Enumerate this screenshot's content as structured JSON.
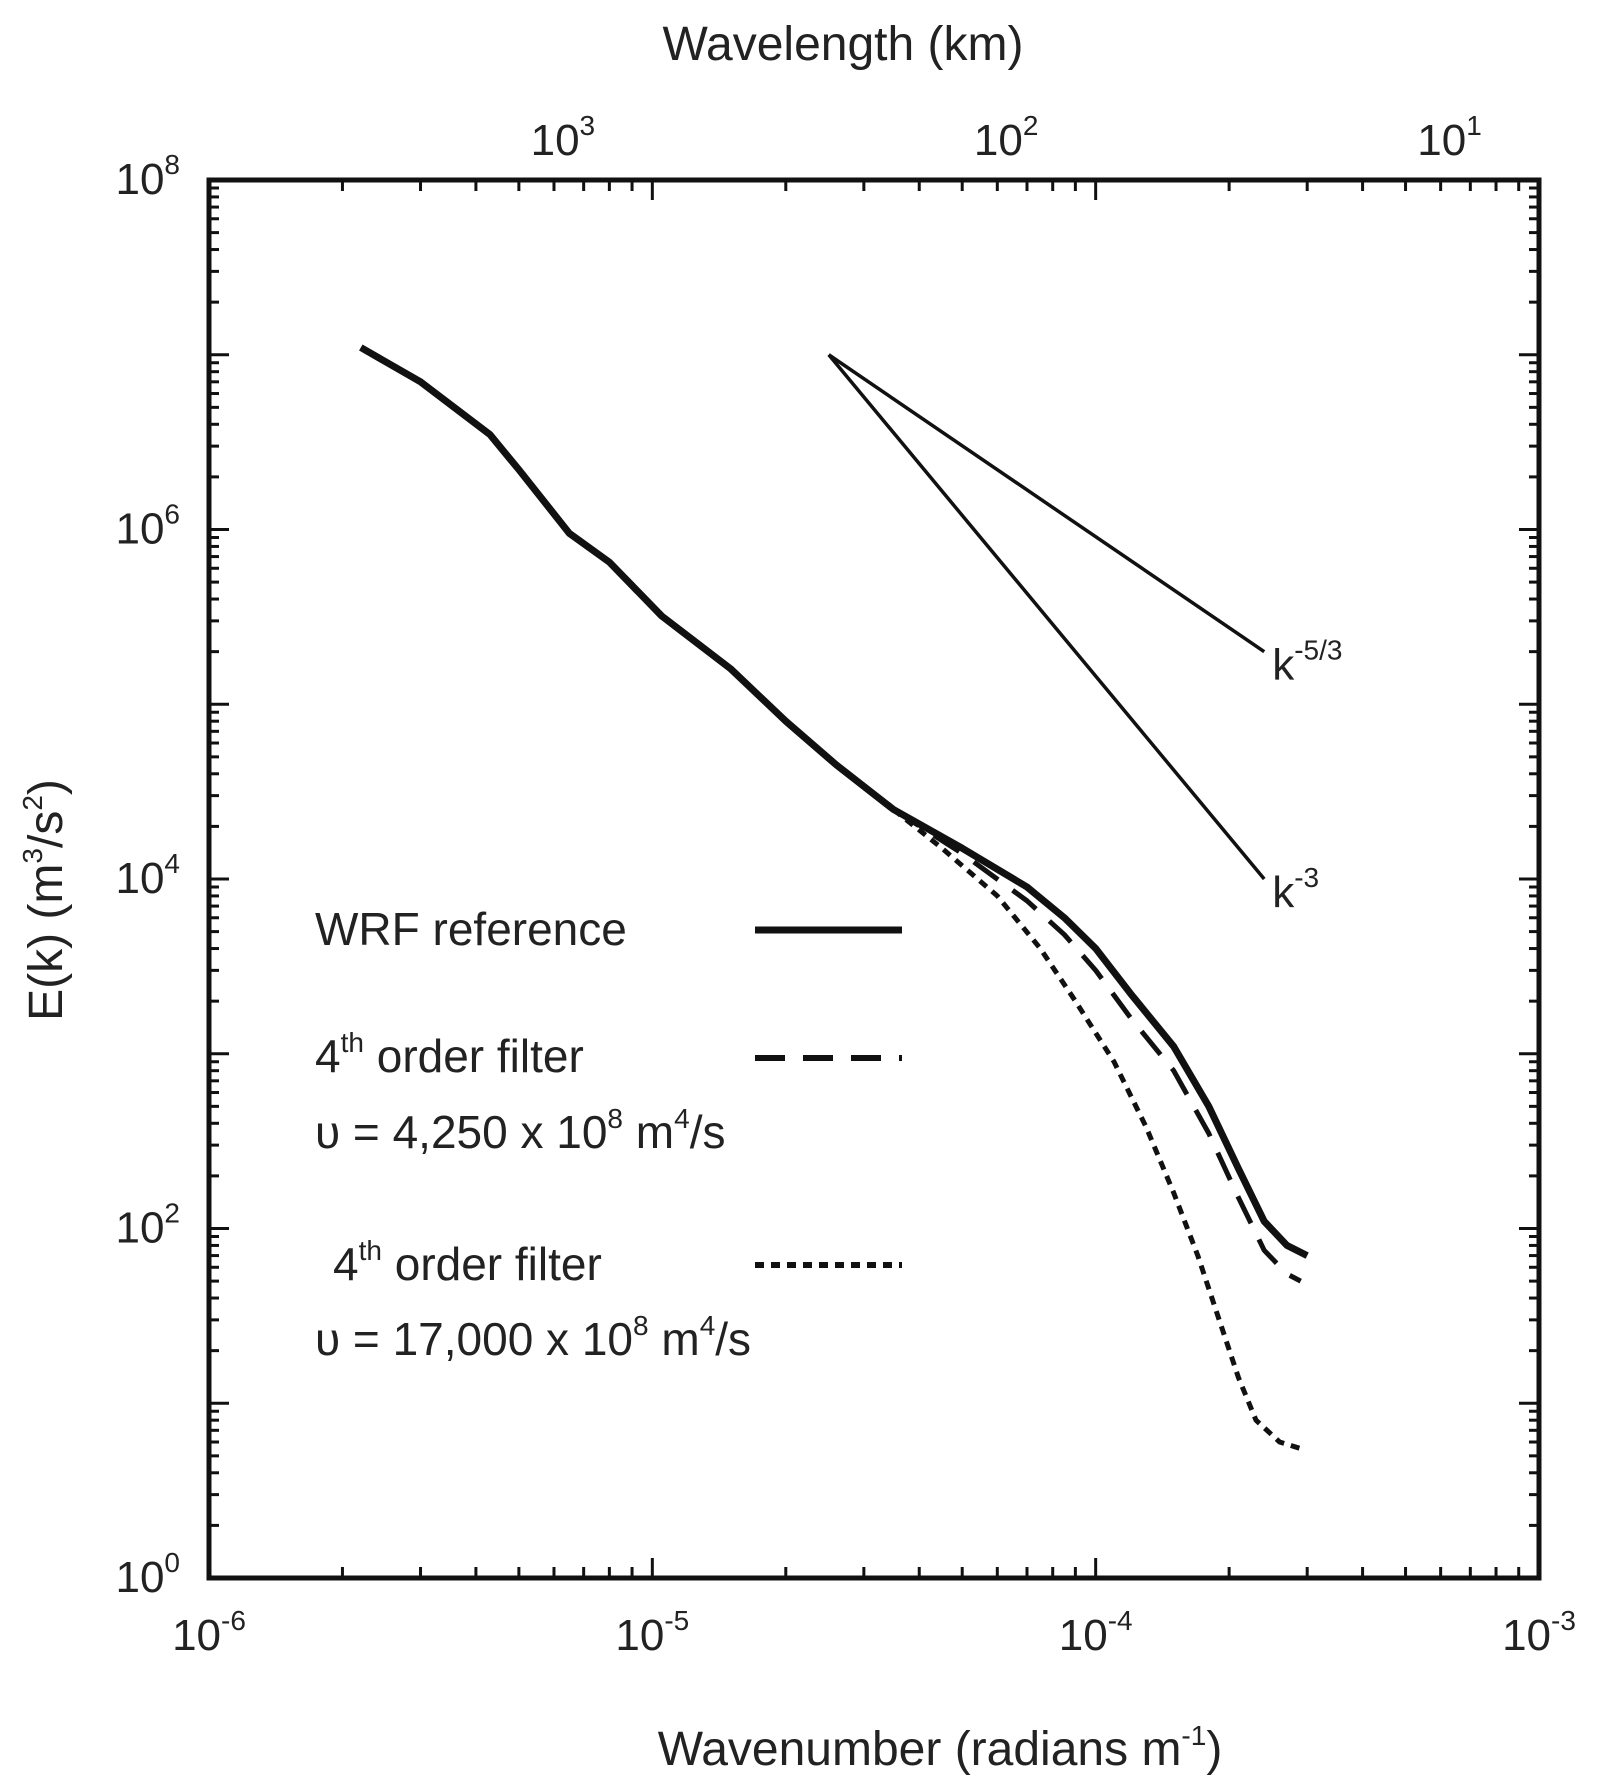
{
  "chart_data": {
    "type": "line",
    "xlabel": {
      "main": "Wavenumber (radians m",
      "sup": "-1",
      "tail": ")"
    },
    "ylabel": {
      "pre": "E(k) (m",
      "sup1": "3",
      "mid": "/s",
      "sup2": "2",
      "tail": ")"
    },
    "top_axis_label": "Wavelength  (km)",
    "xscale": "log",
    "yscale": "log",
    "xlim": [
      1e-06,
      0.001
    ],
    "ylim": [
      1,
      100000000.0
    ],
    "x_ticks": [
      {
        "value": 1e-06,
        "base": "10",
        "exp": "-6"
      },
      {
        "value": 1e-05,
        "base": "10",
        "exp": "-5"
      },
      {
        "value": 0.0001,
        "base": "10",
        "exp": "-4"
      },
      {
        "value": 0.001,
        "base": "10",
        "exp": "-3"
      }
    ],
    "y_ticks": [
      {
        "value": 1,
        "base": "10",
        "exp": "0"
      },
      {
        "value": 100,
        "base": "10",
        "exp": "2"
      },
      {
        "value": 10000,
        "base": "10",
        "exp": "4"
      },
      {
        "value": 1000000,
        "base": "10",
        "exp": "6"
      },
      {
        "value": 100000000,
        "base": "10",
        "exp": "8"
      }
    ],
    "top_ticks": [
      {
        "value_km": 1000,
        "base": "10",
        "exp": "3"
      },
      {
        "value_km": 100,
        "base": "10",
        "exp": "2"
      },
      {
        "value_km": 10,
        "base": "10",
        "exp": "1"
      }
    ],
    "series": [
      {
        "name": "WRF reference",
        "style": "solid",
        "points": [
          [
            2.2e-06,
            11000000.0
          ],
          [
            3e-06,
            7000000.0
          ],
          [
            4.3e-06,
            3500000.0
          ],
          [
            5e-06,
            2200000.0
          ],
          [
            6.5e-06,
            950000.0
          ],
          [
            8e-06,
            650000.0
          ],
          [
            1.05e-05,
            320000.0
          ],
          [
            1.5e-05,
            160000.0
          ],
          [
            2e-05,
            80000.0
          ],
          [
            2.6e-05,
            45000.0
          ],
          [
            3.5e-05,
            25000.0
          ],
          [
            5e-05,
            15000.0
          ],
          [
            7e-05,
            9000.0
          ],
          [
            8.5e-05,
            6000.0
          ],
          [
            0.0001,
            4000.0
          ],
          [
            0.00012,
            2200.0
          ],
          [
            0.00015,
            1100.0
          ],
          [
            0.00018,
            500
          ],
          [
            0.00021,
            220
          ],
          [
            0.00024,
            110
          ],
          [
            0.00027,
            80
          ],
          [
            0.0003,
            70
          ]
        ]
      },
      {
        "name": "4th order filter, υ = 4,250 x 10^8 m^4/s",
        "style": "dashed",
        "points": [
          [
            3.5e-05,
            25000.0
          ],
          [
            5e-05,
            14000.0
          ],
          [
            7e-05,
            7500.0
          ],
          [
            8.5e-05,
            4800.0
          ],
          [
            0.0001,
            3000.0
          ],
          [
            0.00012,
            1600.0
          ],
          [
            0.00015,
            800
          ],
          [
            0.00018,
            350
          ],
          [
            0.00021,
            150
          ],
          [
            0.00024,
            75
          ],
          [
            0.00027,
            55
          ],
          [
            0.00029,
            50
          ]
        ]
      },
      {
        "name": "4th order filter, υ = 17,000 x 10^8 m^4/s",
        "style": "dotted",
        "points": [
          [
            3.5e-05,
            25000.0
          ],
          [
            4.5e-05,
            15000.0
          ],
          [
            6e-05,
            8000.0
          ],
          [
            7.5e-05,
            4000.0
          ],
          [
            9e-05,
            2000.0
          ],
          [
            0.00011,
            900
          ],
          [
            0.00013,
            380
          ],
          [
            0.00015,
            160
          ],
          [
            0.00017,
            70
          ],
          [
            0.00019,
            30
          ],
          [
            0.00021,
            14
          ],
          [
            0.00023,
            8
          ],
          [
            0.00026,
            6
          ],
          [
            0.00029,
            5.5
          ]
        ]
      }
    ],
    "reference_slopes": [
      {
        "label_base": "k",
        "label_exp": "-5/3",
        "from": [
          2.5e-05,
          10000000.0
        ],
        "to": [
          0.00024,
          200000.0
        ]
      },
      {
        "label_base": "k",
        "label_exp": "-3",
        "from": [
          2.5e-05,
          10000000.0
        ],
        "to": [
          0.00024,
          10000.0
        ]
      }
    ],
    "legend": {
      "placement": "lower-left",
      "entries": [
        {
          "line1": "WRF reference",
          "style": "solid"
        },
        {
          "line1_pre": "4",
          "line1_sup": "th",
          "line1_post": " order filter",
          "line2_pre": "υ = 4,250 x 10",
          "line2_sup": "8",
          "line2_mid": " m",
          "line2_sup2": "4",
          "line2_post": "/s",
          "style": "dashed"
        },
        {
          "line1_pre": "4",
          "line1_sup": "th",
          "line1_post": " order filter",
          "line2_pre": "υ = 17,000 x 10",
          "line2_sup": "8",
          "line2_mid": " m",
          "line2_sup2": "4",
          "line2_post": "/s",
          "style": "dotted"
        }
      ]
    },
    "grid": false
  }
}
